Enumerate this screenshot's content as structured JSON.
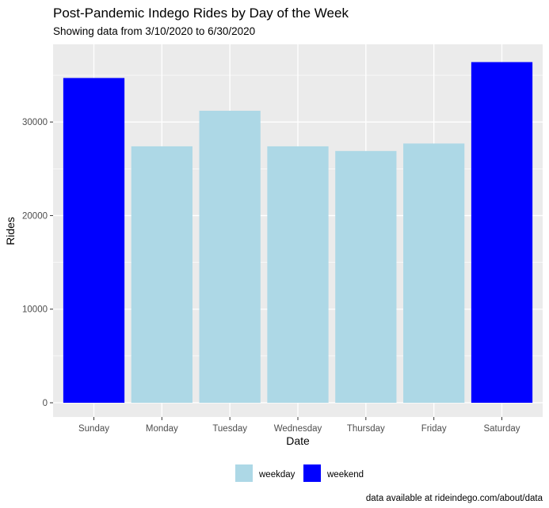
{
  "chart_data": {
    "type": "bar",
    "title": "Post-Pandemic Indego Rides by Day of the Week",
    "subtitle": "Showing data from 3/10/2020 to 6/30/2020",
    "xlabel": "Date",
    "ylabel": "Rides",
    "caption": "data available at rideindego.com/about/data",
    "categories": [
      "Sunday",
      "Monday",
      "Tuesday",
      "Wednesday",
      "Thursday",
      "Friday",
      "Saturday"
    ],
    "values": [
      34700,
      27400,
      31200,
      27400,
      26900,
      27700,
      36400
    ],
    "groups": [
      "weekend",
      "weekday",
      "weekday",
      "weekday",
      "weekday",
      "weekday",
      "weekend"
    ],
    "ylim": [
      0,
      38300
    ],
    "yticks": [
      0,
      10000,
      20000,
      30000
    ],
    "ytick_labels": [
      "0",
      "10000",
      "20000",
      "30000"
    ],
    "grid": true,
    "legend": {
      "placement": "bottom",
      "entries": [
        {
          "label": "weekday",
          "color": "#add8e6"
        },
        {
          "label": "weekend",
          "color": "#0000ff"
        }
      ]
    },
    "colors": {
      "weekday": "#add8e6",
      "weekend": "#0000ff",
      "panel_background": "#ebebeb",
      "grid": "#ffffff"
    }
  }
}
